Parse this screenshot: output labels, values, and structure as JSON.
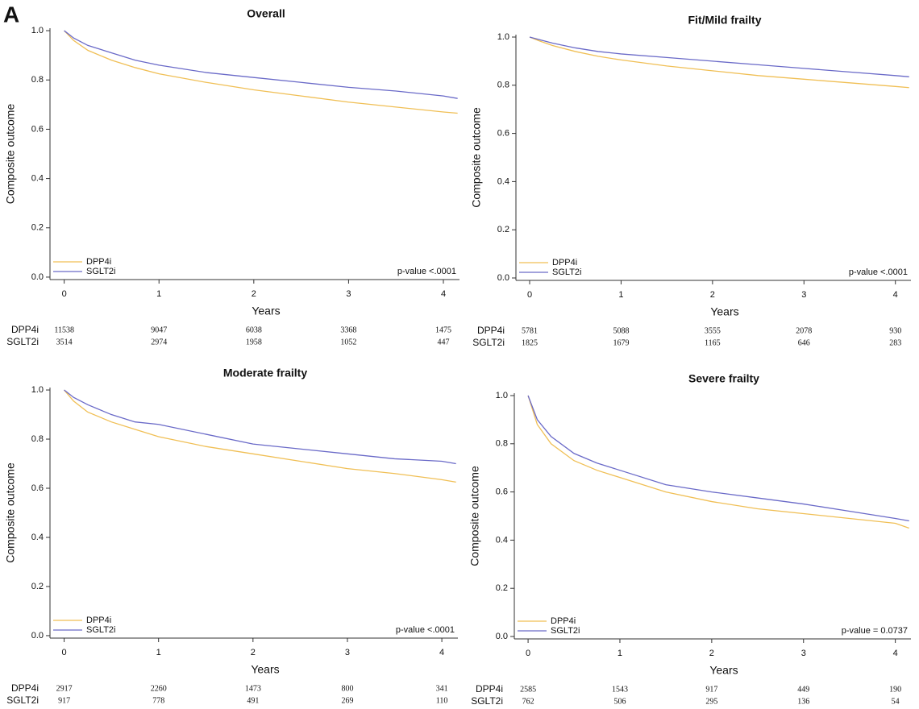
{
  "panel_label": "A",
  "chart_data": [
    {
      "type": "line",
      "title": "Overall",
      "x_label": "Years",
      "y_label": "Composite outcome",
      "annotation": "p-value <.0001",
      "x": [
        0,
        0.1,
        0.25,
        0.5,
        0.75,
        1,
        1.5,
        2,
        2.5,
        3,
        3.5,
        4,
        4.15
      ],
      "series": [
        {
          "name": "DPP4i",
          "color": "#f0bf55",
          "values": [
            1.0,
            0.96,
            0.92,
            0.88,
            0.85,
            0.825,
            0.79,
            0.76,
            0.735,
            0.71,
            0.69,
            0.67,
            0.665
          ]
        },
        {
          "name": "SGLT2i",
          "color": "#6a6ac8",
          "values": [
            1.0,
            0.97,
            0.94,
            0.91,
            0.88,
            0.86,
            0.83,
            0.81,
            0.79,
            0.77,
            0.755,
            0.735,
            0.725
          ]
        }
      ],
      "xlim": [
        -0.15,
        4.17
      ],
      "ylim": [
        -0.01,
        1.01
      ],
      "xticks": [
        0,
        1,
        2,
        3,
        4
      ],
      "yticks": [
        {
          "value": 0,
          "label": "0.0"
        },
        0.2,
        0.4,
        0.6,
        0.8,
        {
          "value": 1,
          "label": "1.0"
        }
      ],
      "risk_table": {
        "rows": [
          {
            "name": "DPP4i",
            "values": [
              11538,
              9047,
              6038,
              3368,
              1475
            ]
          },
          {
            "name": "SGLT2i",
            "values": [
              3514,
              2974,
              1958,
              1052,
              447
            ]
          }
        ]
      }
    },
    {
      "type": "line",
      "title": "Fit/Mild frailty",
      "x_label": "Years",
      "y_label": "Composite outcome",
      "annotation": "p-value <.0001",
      "x": [
        0,
        0.1,
        0.25,
        0.5,
        0.75,
        1,
        1.5,
        2,
        2.5,
        3,
        3.5,
        4,
        4.15
      ],
      "series": [
        {
          "name": "DPP4i",
          "color": "#f0bf55",
          "values": [
            1.0,
            0.985,
            0.965,
            0.94,
            0.92,
            0.905,
            0.88,
            0.86,
            0.84,
            0.825,
            0.81,
            0.795,
            0.79
          ]
        },
        {
          "name": "SGLT2i",
          "color": "#6a6ac8",
          "values": [
            1.0,
            0.99,
            0.975,
            0.955,
            0.94,
            0.93,
            0.915,
            0.9,
            0.885,
            0.87,
            0.855,
            0.84,
            0.835
          ]
        }
      ],
      "xlim": [
        -0.15,
        4.17
      ],
      "ylim": [
        -0.01,
        1.01
      ],
      "xticks": [
        0,
        1,
        2,
        3,
        4
      ],
      "yticks": [
        {
          "value": 0,
          "label": "0.0"
        },
        0.2,
        0.4,
        0.6,
        0.8,
        {
          "value": 1,
          "label": "1.0"
        }
      ],
      "risk_table": {
        "rows": [
          {
            "name": "DPP4i",
            "values": [
              5781,
              5088,
              3555,
              2078,
              930
            ]
          },
          {
            "name": "SGLT2i",
            "values": [
              1825,
              1679,
              1165,
              646,
              283
            ]
          }
        ]
      }
    },
    {
      "type": "line",
      "title": "Moderate frailty",
      "x_label": "Years",
      "y_label": "Composite outcome",
      "annotation": "p-value <.0001",
      "x": [
        0,
        0.1,
        0.25,
        0.5,
        0.75,
        1,
        1.5,
        2,
        2.5,
        3,
        3.5,
        4,
        4.15
      ],
      "series": [
        {
          "name": "DPP4i",
          "color": "#f0bf55",
          "values": [
            1.0,
            0.955,
            0.91,
            0.87,
            0.84,
            0.81,
            0.77,
            0.74,
            0.71,
            0.68,
            0.66,
            0.635,
            0.625
          ]
        },
        {
          "name": "SGLT2i",
          "color": "#6a6ac8",
          "values": [
            1.0,
            0.97,
            0.94,
            0.9,
            0.87,
            0.86,
            0.82,
            0.78,
            0.76,
            0.74,
            0.72,
            0.71,
            0.7
          ]
        }
      ],
      "xlim": [
        -0.15,
        4.17
      ],
      "ylim": [
        -0.01,
        1.01
      ],
      "xticks": [
        0,
        1,
        2,
        3,
        4
      ],
      "yticks": [
        {
          "value": 0,
          "label": "0.0"
        },
        0.2,
        0.4,
        0.6,
        0.8,
        {
          "value": 1,
          "label": "1.0"
        }
      ],
      "risk_table": {
        "rows": [
          {
            "name": "DPP4i",
            "values": [
              2917,
              2260,
              1473,
              800,
              341
            ]
          },
          {
            "name": "SGLT2i",
            "values": [
              917,
              778,
              491,
              269,
              110
            ]
          }
        ]
      }
    },
    {
      "type": "line",
      "title": "Severe frailty",
      "x_label": "Years",
      "y_label": "Composite outcome",
      "annotation": "p-value = 0.0737",
      "x": [
        0,
        0.1,
        0.25,
        0.5,
        0.75,
        1,
        1.5,
        2,
        2.5,
        3,
        3.5,
        4,
        4.15
      ],
      "series": [
        {
          "name": "DPP4i",
          "color": "#f0bf55",
          "values": [
            1.0,
            0.88,
            0.8,
            0.73,
            0.69,
            0.66,
            0.6,
            0.56,
            0.53,
            0.51,
            0.49,
            0.47,
            0.45
          ]
        },
        {
          "name": "SGLT2i",
          "color": "#6a6ac8",
          "values": [
            1.0,
            0.9,
            0.83,
            0.76,
            0.72,
            0.69,
            0.63,
            0.6,
            0.575,
            0.55,
            0.52,
            0.49,
            0.48
          ]
        }
      ],
      "xlim": [
        -0.15,
        4.17
      ],
      "ylim": [
        -0.01,
        1.01
      ],
      "xticks": [
        0,
        1,
        2,
        3,
        4
      ],
      "yticks": [
        {
          "value": 0,
          "label": "0.0"
        },
        0.2,
        0.4,
        0.6,
        0.8,
        {
          "value": 1,
          "label": "1.0"
        }
      ],
      "risk_table": {
        "rows": [
          {
            "name": "DPP4i",
            "values": [
              2585,
              1543,
              917,
              449,
              190
            ]
          },
          {
            "name": "SGLT2i",
            "values": [
              762,
              506,
              295,
              136,
              54
            ]
          }
        ]
      }
    }
  ]
}
